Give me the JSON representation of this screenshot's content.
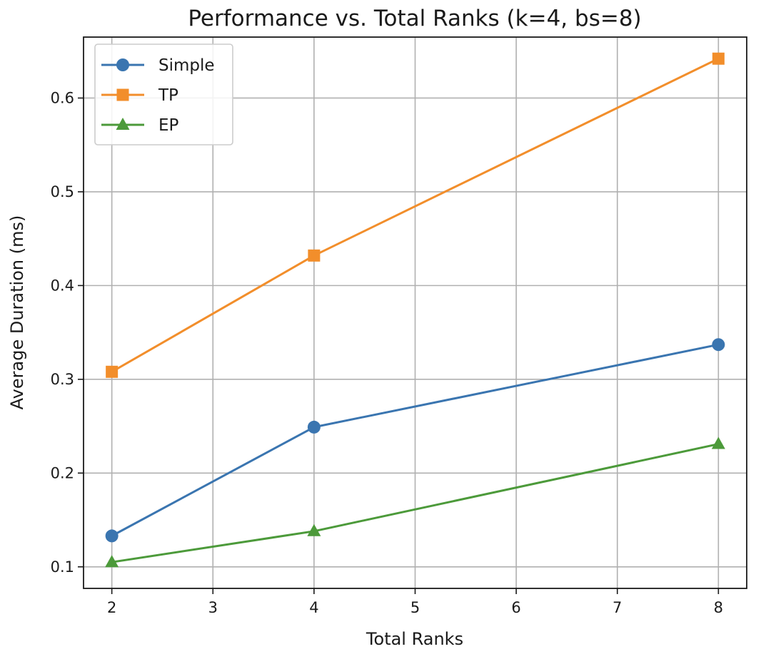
{
  "chart_data": {
    "type": "line",
    "title": "Performance vs. Total Ranks (k=4, bs=8)",
    "xlabel": "Total Ranks",
    "ylabel": "Average Duration (ms)",
    "x": [
      2,
      4,
      8
    ],
    "xlim": [
      1.72,
      8.28
    ],
    "ylim": [
      0.077,
      0.665
    ],
    "xticks": [
      2,
      3,
      4,
      5,
      6,
      7,
      8
    ],
    "yticks": [
      0.1,
      0.2,
      0.3,
      0.4,
      0.5,
      0.6
    ],
    "grid": true,
    "legend_position": "top-left",
    "series": [
      {
        "name": "Simple",
        "values": [
          0.133,
          0.249,
          0.337
        ],
        "color": "#3a75b0",
        "marker": "circle"
      },
      {
        "name": "TP",
        "values": [
          0.308,
          0.432,
          0.642
        ],
        "color": "#f28e2b",
        "marker": "square"
      },
      {
        "name": "EP",
        "values": [
          0.105,
          0.138,
          0.231
        ],
        "color": "#4c9a3a",
        "marker": "triangle"
      }
    ]
  }
}
